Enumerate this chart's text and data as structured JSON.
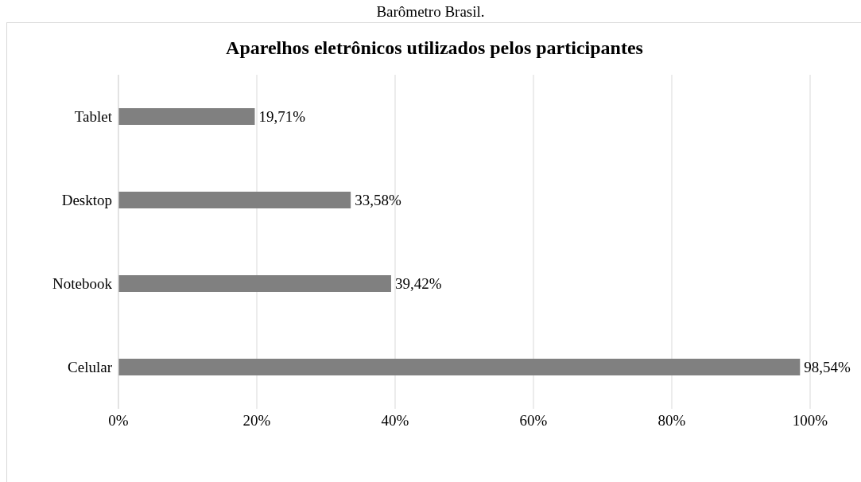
{
  "chart_data": {
    "type": "bar",
    "orientation": "horizontal",
    "title": "Aparelhos eletrônicos utilizados pelos participantes",
    "annotations": [
      "Barômetro Brasil."
    ],
    "categories": [
      "Tablet",
      "Desktop",
      "Notebook",
      "Celular"
    ],
    "values": [
      19.71,
      33.58,
      39.42,
      98.54
    ],
    "value_labels": [
      "19,71%",
      "33,58%",
      "39,42%",
      "98,54%"
    ],
    "color": "#808080",
    "xlim": [
      0,
      100
    ],
    "xticks": [
      {
        "value": 0,
        "label": "0%"
      },
      {
        "value": 20,
        "label": "20%"
      },
      {
        "value": 40,
        "label": "40%"
      },
      {
        "value": 60,
        "label": "60%"
      },
      {
        "value": 80,
        "label": "80%"
      },
      {
        "value": 100,
        "label": "100%"
      }
    ],
    "grid": "x"
  }
}
